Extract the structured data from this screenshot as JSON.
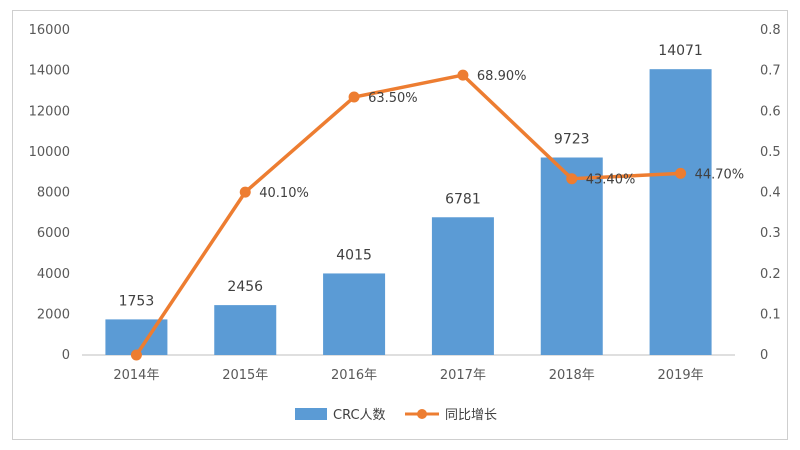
{
  "chart_data": {
    "type": "bar",
    "categories": [
      "2014年",
      "2015年",
      "2016年",
      "2017年",
      "2018年",
      "2019年"
    ],
    "series": [
      {
        "name": "CRC人数",
        "type": "bar",
        "axis": "left",
        "color": "#5B9BD5",
        "values": [
          1753,
          2456,
          4015,
          6781,
          9723,
          14071
        ],
        "labels": [
          "1753",
          "2456",
          "4015",
          "6781",
          "9723",
          "14071"
        ]
      },
      {
        "name": "同比增长",
        "type": "line",
        "axis": "right",
        "color": "#ED7D31",
        "values": [
          0,
          0.401,
          0.635,
          0.689,
          0.434,
          0.447
        ],
        "labels": [
          "",
          "40.10%",
          "63.50%",
          "68.90%",
          "43.40%",
          "44.70%"
        ]
      }
    ],
    "y_left": {
      "min": 0,
      "max": 16000,
      "step": 2000,
      "ticks": [
        "0",
        "2000",
        "4000",
        "6000",
        "8000",
        "10000",
        "12000",
        "14000",
        "16000"
      ]
    },
    "y_right": {
      "min": 0,
      "max": 0.8,
      "step": 0.1,
      "ticks": [
        "0",
        "0.1",
        "0.2",
        "0.3",
        "0.4",
        "0.5",
        "0.6",
        "0.7",
        "0.8"
      ]
    },
    "title": "",
    "xlabel": "",
    "ylabel": "",
    "grid": false,
    "legend_position": "bottom"
  }
}
